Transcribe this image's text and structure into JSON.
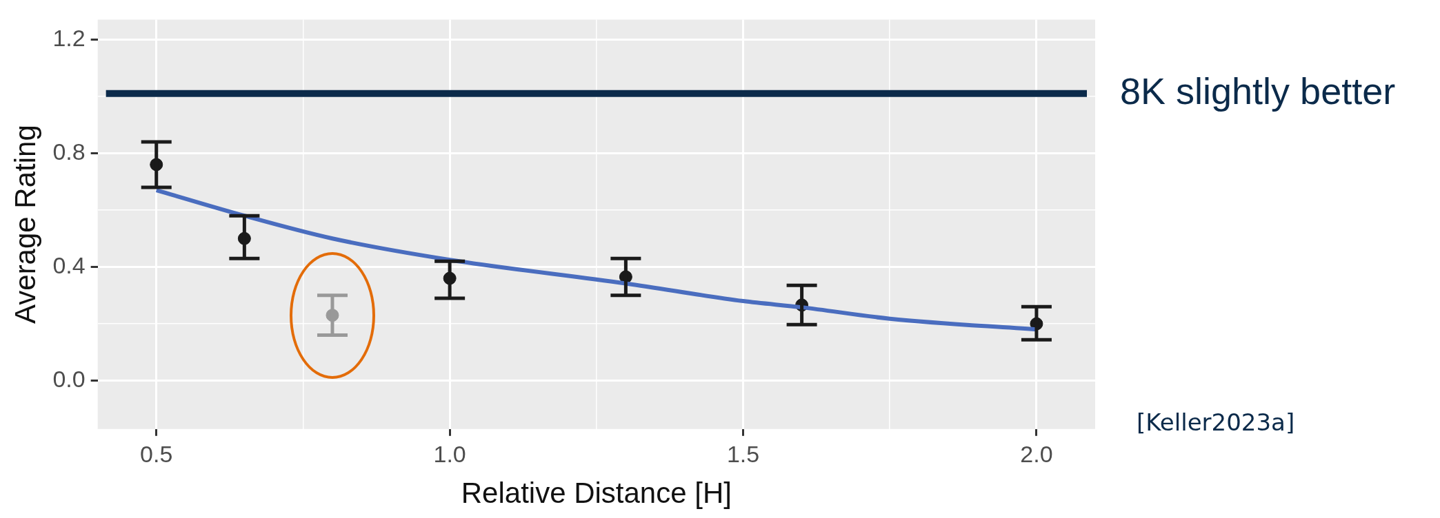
{
  "chart_data": {
    "type": "scatter",
    "xlabel": "Relative Distance [H]",
    "ylabel": "Average Rating",
    "xlim": [
      0.4,
      2.1
    ],
    "xticks": [
      0.5,
      {
        "value": 0.75,
        "label": null
      },
      {
        "value": 1,
        "label": "1.0"
      },
      {
        "value": 1.25,
        "label": null
      },
      1.5,
      {
        "value": 1.75,
        "label": null
      },
      {
        "value": 2,
        "label": "2.0"
      }
    ],
    "ylim": [
      -0.17,
      1.27
    ],
    "yticks": [
      {
        "value": 0,
        "label": "0.0"
      },
      {
        "value": 0.2,
        "label": null
      },
      0.4,
      {
        "value": 0.6,
        "label": null
      },
      0.8,
      {
        "value": 1.0,
        "label": null
      },
      1.2
    ],
    "grid": true,
    "marker": "circle",
    "series": [
      {
        "color": "#1a1a1a",
        "x": [
          0.5,
          0.65,
          1.0,
          1.3,
          1.6,
          2.0
        ],
        "values": [
          0.76,
          0.5,
          0.36,
          0.365,
          0.266,
          0.2
        ],
        "errors": [
          [
            0.68,
            0.84
          ],
          [
            0.43,
            0.58
          ],
          [
            0.29,
            0.42
          ],
          [
            0.3,
            0.43
          ],
          [
            0.197,
            0.335
          ],
          [
            0.144,
            0.26
          ]
        ]
      },
      {
        "color": "#999999",
        "x": [
          0.8
        ],
        "values": [
          0.23
        ],
        "errors": [
          [
            0.16,
            0.3
          ]
        ]
      },
      {
        "type": "line",
        "marker": "none",
        "color": "#4a6dbf",
        "x": [
          0.5,
          0.65,
          0.8,
          1.0,
          1.3,
          1.5,
          1.6,
          1.75,
          2.0
        ],
        "values": [
          0.67,
          0.58,
          0.5,
          0.425,
          0.342,
          0.28,
          0.258,
          0.218,
          0.18
        ]
      }
    ],
    "ref_lines": [
      {
        "axis": "y",
        "value": 1.01,
        "label": "8K slightly better",
        "color": "#0b2a4a"
      }
    ],
    "annotations": [
      "[Keller2023a]"
    ]
  }
}
